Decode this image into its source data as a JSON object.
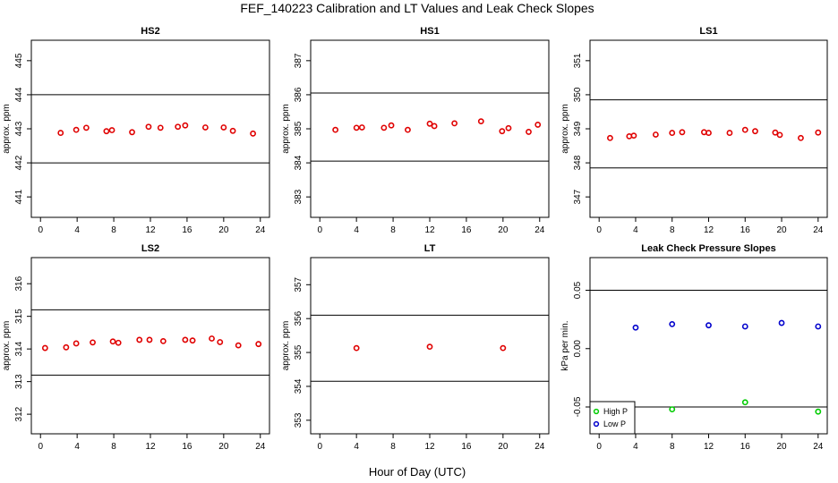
{
  "title": "FEF_140223  Calibration and LT Values and Leak Check Slopes",
  "xlabel": "Hour of Day (UTC)",
  "chart_data": [
    {
      "type": "scatter",
      "title": "HS2",
      "ylabel": "approx. ppm",
      "xlim": [
        -1,
        25
      ],
      "ylim": [
        440.4,
        445.6
      ],
      "xticks": [
        0,
        4,
        8,
        12,
        16,
        20,
        24
      ],
      "yticks": [
        441,
        442,
        443,
        444,
        445
      ],
      "hlines": [
        442,
        444
      ],
      "series": [
        {
          "color": "#e00000",
          "marker": "circle",
          "x": [
            2.2,
            3.9,
            5.0,
            7.2,
            7.8,
            10.0,
            11.8,
            13.1,
            15.0,
            15.8,
            18.0,
            20.0,
            21.0,
            23.2
          ],
          "y": [
            442.88,
            442.97,
            443.03,
            442.93,
            442.96,
            442.9,
            443.06,
            443.03,
            443.06,
            443.1,
            443.04,
            443.04,
            442.94,
            442.86
          ]
        }
      ]
    },
    {
      "type": "scatter",
      "title": "HS1",
      "ylabel": "approx. ppm",
      "xlim": [
        -1,
        25
      ],
      "ylim": [
        382.4,
        387.6
      ],
      "xticks": [
        0,
        4,
        8,
        12,
        16,
        20,
        24
      ],
      "yticks": [
        383,
        384,
        385,
        386,
        387
      ],
      "hlines": [
        384.05,
        386.05
      ],
      "series": [
        {
          "color": "#e00000",
          "marker": "circle",
          "x": [
            1.7,
            4.0,
            4.6,
            7.0,
            7.8,
            9.6,
            12.0,
            12.5,
            14.7,
            17.6,
            19.9,
            20.6,
            22.8,
            23.8
          ],
          "y": [
            384.97,
            385.03,
            385.04,
            385.03,
            385.1,
            384.97,
            385.15,
            385.08,
            385.16,
            385.22,
            384.93,
            385.02,
            384.91,
            385.12
          ]
        }
      ]
    },
    {
      "type": "scatter",
      "title": "LS1",
      "ylabel": "approx. ppm",
      "xlim": [
        -1,
        25
      ],
      "ylim": [
        346.4,
        351.6
      ],
      "xticks": [
        0,
        4,
        8,
        12,
        16,
        20,
        24
      ],
      "yticks": [
        347,
        348,
        349,
        350,
        351
      ],
      "hlines": [
        347.85,
        349.85
      ],
      "series": [
        {
          "color": "#e00000",
          "marker": "circle",
          "x": [
            1.2,
            3.3,
            3.8,
            6.2,
            8.0,
            9.1,
            11.5,
            12.0,
            14.3,
            16.0,
            17.1,
            19.3,
            19.8,
            22.1,
            24.0
          ],
          "y": [
            348.73,
            348.78,
            348.8,
            348.83,
            348.88,
            348.9,
            348.9,
            348.88,
            348.88,
            348.97,
            348.93,
            348.89,
            348.82,
            348.73,
            348.89
          ]
        }
      ]
    },
    {
      "type": "scatter",
      "title": "LS2",
      "ylabel": "approx. ppm",
      "xlim": [
        -1,
        25
      ],
      "ylim": [
        311.4,
        316.8
      ],
      "xticks": [
        0,
        4,
        8,
        12,
        16,
        20,
        24
      ],
      "yticks": [
        312,
        313,
        314,
        315,
        316
      ],
      "hlines": [
        313.2,
        315.2
      ],
      "series": [
        {
          "color": "#e00000",
          "marker": "circle",
          "x": [
            0.5,
            2.8,
            3.9,
            5.7,
            7.9,
            8.5,
            10.8,
            11.9,
            13.4,
            15.8,
            16.6,
            18.7,
            19.6,
            21.6,
            23.8
          ],
          "y": [
            314.03,
            314.05,
            314.17,
            314.2,
            314.23,
            314.19,
            314.28,
            314.28,
            314.24,
            314.28,
            314.26,
            314.32,
            314.21,
            314.11,
            314.15
          ]
        }
      ]
    },
    {
      "type": "scatter",
      "title": "LT",
      "ylabel": "approx. ppm",
      "xlim": [
        -1,
        25
      ],
      "ylim": [
        352.6,
        357.8
      ],
      "xticks": [
        0,
        4,
        8,
        12,
        16,
        20,
        24
      ],
      "yticks": [
        353,
        354,
        355,
        356,
        357
      ],
      "hlines": [
        354.15,
        356.1
      ],
      "series": [
        {
          "color": "#e00000",
          "marker": "circle",
          "x": [
            4.0,
            12.0,
            20.0
          ],
          "y": [
            355.13,
            355.17,
            355.13
          ]
        }
      ]
    },
    {
      "type": "scatter",
      "title": "Leak Check Pressure Slopes",
      "ylabel": "kPa per min.",
      "xlim": [
        -1,
        25
      ],
      "ylim": [
        -0.073,
        0.078
      ],
      "xticks": [
        0,
        4,
        8,
        12,
        16,
        20,
        24
      ],
      "yticks": [
        -0.05,
        0.0,
        0.05
      ],
      "ytick_labels": [
        "-0.05",
        "0.00",
        "0.05"
      ],
      "hlines": [
        -0.05,
        0.05
      ],
      "legend": "bottom-left",
      "series": [
        {
          "name": "High P",
          "color": "#00cc00",
          "marker": "circle",
          "x": [
            8.0,
            16.0,
            24.0
          ],
          "y": [
            -0.052,
            -0.046,
            -0.054
          ]
        },
        {
          "name": "Low P",
          "color": "#0000cc",
          "marker": "circle",
          "x": [
            4.0,
            8.0,
            12.0,
            16.0,
            20.0,
            24.0
          ],
          "y": [
            0.018,
            0.021,
            0.02,
            0.019,
            0.022,
            0.019
          ]
        }
      ]
    }
  ]
}
